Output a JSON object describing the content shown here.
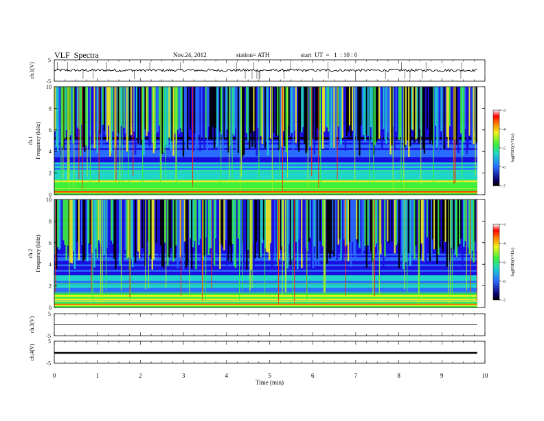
{
  "header": {
    "title": "VLF  Spectra",
    "date": "Nov.24, 2012",
    "station": "station= ATH",
    "start_time": "start  UT  =   1  : 10 : 0"
  },
  "colors": {
    "background": "#ffffff",
    "axis": "#000000",
    "colormap": [
      "#000000",
      "#1a0de0",
      "#2a6cff",
      "#1fd6c8",
      "#3cf03c",
      "#f0f020",
      "#ff8000",
      "#ff0000",
      "#ffffff"
    ]
  },
  "chart_data": [
    {
      "type": "line",
      "channel": "ch.1",
      "ylabel": "ch.1(V)",
      "ylim": [
        -5,
        5
      ],
      "yticks": [
        "5",
        "-5"
      ],
      "description_level": 0,
      "trace_level": 0.1,
      "spikes": true
    },
    {
      "type": "heatmap",
      "channel": "ch.1",
      "ylabel_channel": "ch.1",
      "ylabel": "Frequency  (kHz)",
      "ylim": [
        0,
        10
      ],
      "yticks": [
        "0",
        "2",
        "4",
        "6",
        "8",
        "10"
      ],
      "colorbar": {
        "label": "log(PSD)(V²/Hz)",
        "range": [
          -7,
          -3
        ],
        "ticks": [
          "-3",
          "-4",
          "-5",
          "-6",
          "-7"
        ]
      }
    },
    {
      "type": "heatmap",
      "channel": "ch.2",
      "ylabel_channel": "ch.2",
      "ylabel": "Frequency  (kHz)",
      "ylim": [
        0,
        10
      ],
      "yticks": [
        "0",
        "2",
        "4",
        "6",
        "8",
        "10"
      ],
      "colorbar": {
        "label": "log(PSD)(V²/Hz)",
        "range": [
          -7,
          -3
        ],
        "ticks": [
          "-3",
          "-4",
          "-5",
          "-6",
          "-7"
        ]
      }
    },
    {
      "type": "line",
      "channel": "ch.3",
      "ylabel": "ch.3(V)",
      "ylim": [
        -5,
        5
      ],
      "yticks": [
        "5",
        "-5"
      ],
      "trace_level": 0.1
    },
    {
      "type": "line",
      "channel": "ch.4",
      "ylabel": "ch.4(V)",
      "ylim": [
        -5,
        5
      ],
      "yticks": [
        "5",
        "-5"
      ],
      "trace_level": -0.3
    }
  ],
  "x_axis": {
    "xlabel": "Time  (min)",
    "xlim": [
      0,
      10
    ],
    "data_end": 9.82,
    "ticks": [
      "0",
      "1",
      "2",
      "3",
      "4",
      "5",
      "6",
      "7",
      "8",
      "9",
      "10"
    ]
  }
}
